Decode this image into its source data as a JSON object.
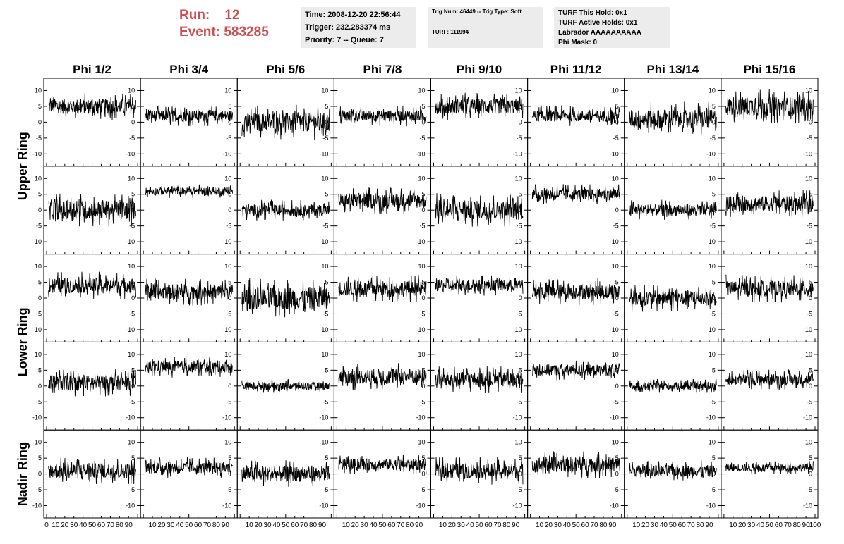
{
  "header": {
    "run_label": "Run:",
    "run_value": "12",
    "event_label": "Event:",
    "event_value": "583285"
  },
  "info_panel_1": {
    "time": "Time: 2008-12-20 22:56:44",
    "trigger": "Trigger: 232.283374 ms",
    "priority": "Priority: 7 -- Queue: 7"
  },
  "info_panel_2": {
    "trig": "Trig Num: 46449 -- Trig Type: Soft",
    "turf": "TURF: 111994"
  },
  "info_panel_3": {
    "hold": "TURF This Hold: 0x1",
    "active": "TURF Active Holds: 0x1",
    "labrador": "Labrador AAAAAAAAAA",
    "phimask": "Phi Mask: 0"
  },
  "chart_data": {
    "type": "line",
    "columns": [
      "Phi 1/2",
      "Phi 3/4",
      "Phi 5/6",
      "Phi 7/8",
      "Phi 9/10",
      "Phi 11/12",
      "Phi 13/14",
      "Phi 15/16"
    ],
    "rows": [
      "Upper Ring",
      "Upper Ring",
      "Lower Ring",
      "Lower Ring",
      "Nadir Ring"
    ],
    "row_labels": [
      {
        "text": "Upper Ring",
        "spans_rows": [
          0,
          1
        ]
      },
      {
        "text": "Lower Ring",
        "spans_rows": [
          2,
          3
        ]
      },
      {
        "text": "Nadir Ring",
        "spans_rows": [
          4
        ]
      }
    ],
    "xlim": [
      0,
      100
    ],
    "ylim": [
      -13,
      13
    ],
    "yticks": [
      -10,
      -5,
      0,
      5,
      10
    ],
    "x_tick_labels": [
      "0",
      "10",
      "20",
      "30",
      "40",
      "50",
      "60",
      "70",
      "80",
      "90",
      "100"
    ],
    "approx_center_levels": [
      [
        5,
        2,
        0,
        2,
        5,
        2,
        1,
        5
      ],
      [
        0,
        6,
        0,
        3,
        0,
        5,
        0,
        2
      ],
      [
        4,
        2,
        0,
        3,
        4,
        2,
        0,
        3
      ],
      [
        1,
        6,
        0,
        3,
        2,
        5,
        0,
        2
      ],
      [
        1,
        2,
        0,
        3,
        1,
        3,
        1,
        2
      ]
    ],
    "approx_noise_amplitude": [
      [
        4,
        3,
        5,
        3,
        4,
        3,
        5,
        5
      ],
      [
        5,
        2,
        3,
        4,
        5,
        3,
        3,
        4
      ],
      [
        4,
        4,
        6,
        4,
        3,
        4,
        4,
        4
      ],
      [
        4,
        3,
        2,
        4,
        4,
        3,
        2,
        3
      ],
      [
        4,
        3,
        4,
        3,
        4,
        4,
        3,
        2
      ]
    ]
  }
}
